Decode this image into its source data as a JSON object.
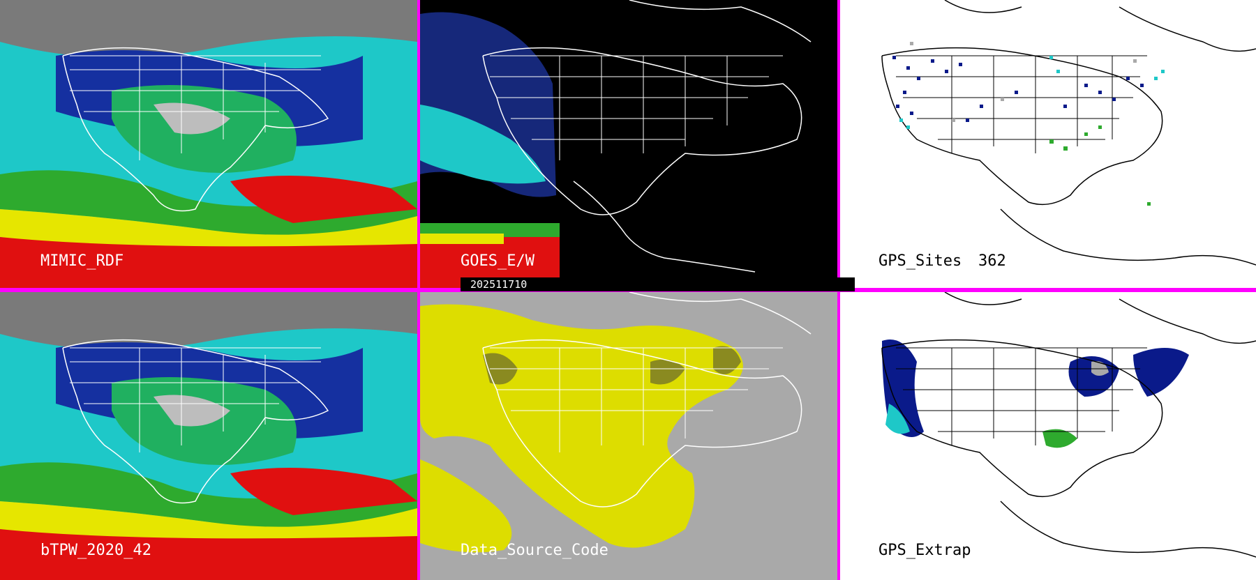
{
  "panels": {
    "mimic_rdf": {
      "label": "MIMIC_RDF",
      "bg": "#00c8c8"
    },
    "goes_ew": {
      "label": "GOES_E/W",
      "bg": "#000000"
    },
    "gps_sites": {
      "label": "GPS_Sites",
      "count": "362",
      "bg": "#ffffff"
    },
    "btpw": {
      "label": "bTPW_2020_42",
      "bg": "#00c8c8"
    },
    "data_source": {
      "label": "Data_Source_Code",
      "bg": "#a9a9a9"
    },
    "gps_extrap": {
      "label": "GPS_Extrap",
      "bg": "#ffffff"
    }
  },
  "timestamp": "202511710",
  "colors": {
    "border": "#ff00ff",
    "coast_light": "#ffffff",
    "coast_dark": "#000000",
    "accent_yellow": "#dddd00"
  }
}
